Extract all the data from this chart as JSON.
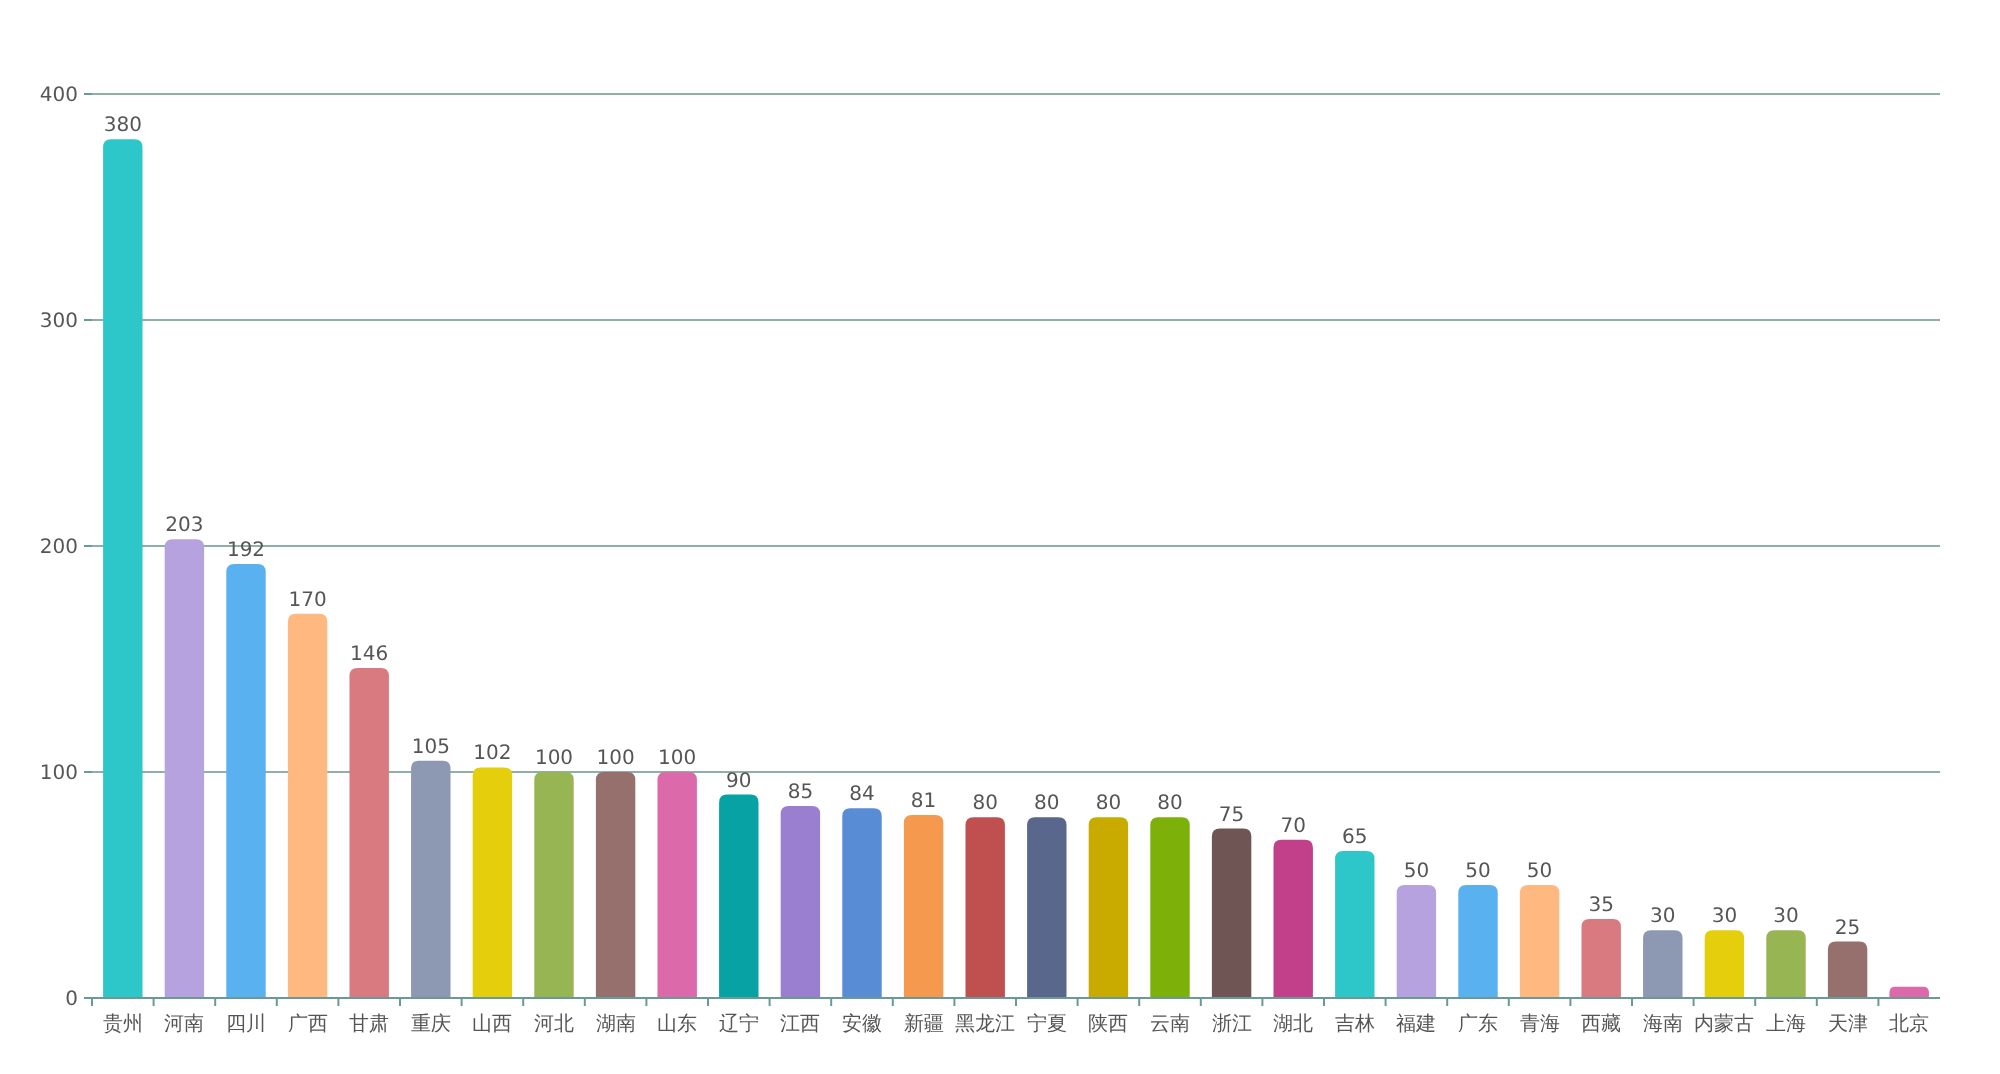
{
  "chart_data": {
    "type": "bar",
    "categories": [
      "贵州",
      "河南",
      "四川",
      "广西",
      "甘肃",
      "重庆",
      "山西",
      "河北",
      "湖南",
      "山东",
      "辽宁",
      "江西",
      "安徽",
      "新疆",
      "黑龙江",
      "宁夏",
      "陕西",
      "云南",
      "浙江",
      "湖北",
      "吉林",
      "福建",
      "广东",
      "青海",
      "西藏",
      "海南",
      "内蒙古",
      "上海",
      "天津",
      "北京"
    ],
    "values": [
      380,
      203,
      192,
      170,
      146,
      105,
      102,
      100,
      100,
      100,
      90,
      85,
      84,
      81,
      80,
      80,
      80,
      80,
      75,
      70,
      65,
      50,
      50,
      50,
      35,
      30,
      30,
      30,
      25,
      5
    ],
    "value_labels": [
      "380",
      "203",
      "192",
      "170",
      "146",
      "105",
      "102",
      "100",
      "100",
      "100",
      "90",
      "85",
      "84",
      "81",
      "80",
      "80",
      "80",
      "80",
      "75",
      "70",
      "65",
      "50",
      "50",
      "50",
      "35",
      "30",
      "30",
      "30",
      "25",
      null
    ],
    "colors": [
      "#2ec7c9",
      "#b6a2de",
      "#5ab1ef",
      "#ffb980",
      "#d87a80",
      "#8d98b3",
      "#e5cf0d",
      "#97b552",
      "#95706d",
      "#dc69aa",
      "#07a2a4",
      "#9a7fd1",
      "#588dd5",
      "#f5994e",
      "#c05050",
      "#59678c",
      "#c9ab00",
      "#7eb00a",
      "#6f5553",
      "#c14089",
      "#2ec7c9",
      "#b6a2de",
      "#5ab1ef",
      "#ffb980",
      "#d87a80",
      "#8d98b3",
      "#e5cf0d",
      "#97b552",
      "#95706d",
      "#dc69aa"
    ],
    "ylim": [
      0,
      400
    ],
    "yticks": [
      0,
      100,
      200,
      300,
      400
    ],
    "grid": "y"
  }
}
